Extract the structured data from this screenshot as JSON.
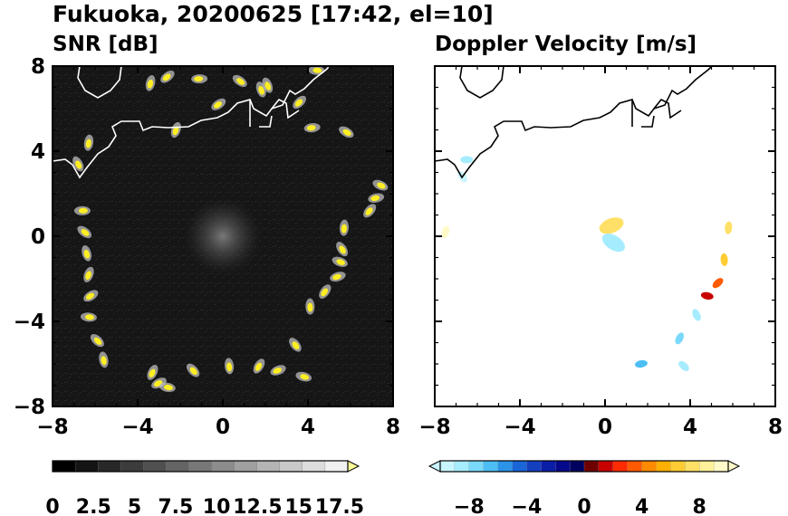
{
  "figure_title": "Fukuoka, 20200625 [17:42, el=10]",
  "colors": {
    "snr_background": "#141414",
    "snr_echo": "#ffee22",
    "coastline": "#000000",
    "vel_background": "#ffffff"
  },
  "chart_data": [
    {
      "type": "heatmap",
      "title": "SNR [dB]",
      "xlim": [
        -8,
        8
      ],
      "ylim": [
        -8,
        8
      ],
      "x_ticks": [
        "−8",
        "−4",
        "0",
        "4",
        "8"
      ],
      "y_ticks": [
        "8",
        "4",
        "0",
        "−4",
        "−8"
      ],
      "colorbar": {
        "ticks": [
          "0",
          "2.5",
          "5",
          "7.5",
          "10",
          "12.5",
          "15",
          "17.5"
        ],
        "range": [
          0,
          18
        ],
        "extend": "max",
        "colors": [
          "#000000",
          "#141414",
          "#282828",
          "#3c3c3c",
          "#505050",
          "#646464",
          "#787878",
          "#8c8c8c",
          "#a0a0a0",
          "#b4b4b4",
          "#c8c8c8",
          "#dcdcdc",
          "#f0f0f0",
          "#ffff99"
        ]
      },
      "echo_ring_points": [
        [
          -6.6,
          1.2
        ],
        [
          -6.5,
          0.2
        ],
        [
          -6.4,
          -0.8
        ],
        [
          -6.3,
          -1.8
        ],
        [
          -6.2,
          -2.8
        ],
        [
          -6.3,
          -3.8
        ],
        [
          -5.9,
          -4.9
        ],
        [
          -5.6,
          -5.8
        ],
        [
          -3.3,
          -6.4
        ],
        [
          -3.0,
          -6.9
        ],
        [
          -2.6,
          -7.1
        ],
        [
          -1.4,
          -6.3
        ],
        [
          0.3,
          -6.1
        ],
        [
          1.7,
          -6.1
        ],
        [
          2.6,
          -6.3
        ],
        [
          3.8,
          -6.6
        ],
        [
          3.4,
          -5.1
        ],
        [
          4.1,
          -3.3
        ],
        [
          4.8,
          -2.6
        ],
        [
          5.4,
          -1.9
        ],
        [
          5.5,
          -1.2
        ],
        [
          5.6,
          -0.6
        ],
        [
          5.7,
          0.4
        ],
        [
          6.9,
          1.2
        ],
        [
          7.2,
          1.8
        ],
        [
          7.4,
          2.4
        ],
        [
          -6.8,
          3.4
        ],
        [
          -6.3,
          4.4
        ],
        [
          3.6,
          6.3
        ],
        [
          4.2,
          5.1
        ],
        [
          5.8,
          4.9
        ],
        [
          2.1,
          7.1
        ],
        [
          -3.4,
          7.2
        ],
        [
          -2.6,
          7.5
        ],
        [
          -1.1,
          7.4
        ],
        [
          0.8,
          7.3
        ],
        [
          1.8,
          6.9
        ],
        [
          -2.2,
          5.0
        ],
        [
          -0.2,
          6.2
        ],
        [
          4.4,
          7.8
        ]
      ]
    },
    {
      "type": "heatmap",
      "title": "Doppler Velocity [m/s]",
      "xlim": [
        -8,
        8
      ],
      "ylim": [
        -8,
        8
      ],
      "x_ticks": [
        "−8",
        "−4",
        "0",
        "4",
        "8"
      ],
      "y_ticks": [],
      "colorbar": {
        "ticks": [
          "−8",
          "−4",
          "0",
          "4",
          "8"
        ],
        "range": [
          -10,
          10
        ],
        "extend": "both",
        "colors": [
          "#c8f5ff",
          "#a6ecff",
          "#7ad9fa",
          "#4cbef5",
          "#2b93e8",
          "#1a66d8",
          "#1440c0",
          "#0b1ea8",
          "#050a8c",
          "#000060",
          "#700000",
          "#c80000",
          "#ff2b00",
          "#ff5a00",
          "#ff8a00",
          "#ffb000",
          "#ffcc33",
          "#ffe066",
          "#fff199",
          "#fffac8"
        ]
      },
      "velocity_features": [
        {
          "x": -6.5,
          "y": 3.6,
          "value": -9
        },
        {
          "x": -6.7,
          "y": 2.8,
          "value": -10
        },
        {
          "x": -7.5,
          "y": 0.2,
          "value": 9
        },
        {
          "x": 0.3,
          "y": 0.5,
          "value": 7
        },
        {
          "x": 0.4,
          "y": -0.3,
          "value": -9
        },
        {
          "x": 5.6,
          "y": -1.1,
          "value": 6
        },
        {
          "x": 5.3,
          "y": -2.2,
          "value": 3
        },
        {
          "x": 4.8,
          "y": -2.8,
          "value": 1
        },
        {
          "x": 4.3,
          "y": -3.7,
          "value": -9
        },
        {
          "x": 3.5,
          "y": -4.8,
          "value": -8
        },
        {
          "x": 1.7,
          "y": -6.0,
          "value": -7
        },
        {
          "x": 3.7,
          "y": -6.1,
          "value": -9
        },
        {
          "x": 5.8,
          "y": 0.4,
          "value": 7
        }
      ]
    }
  ]
}
